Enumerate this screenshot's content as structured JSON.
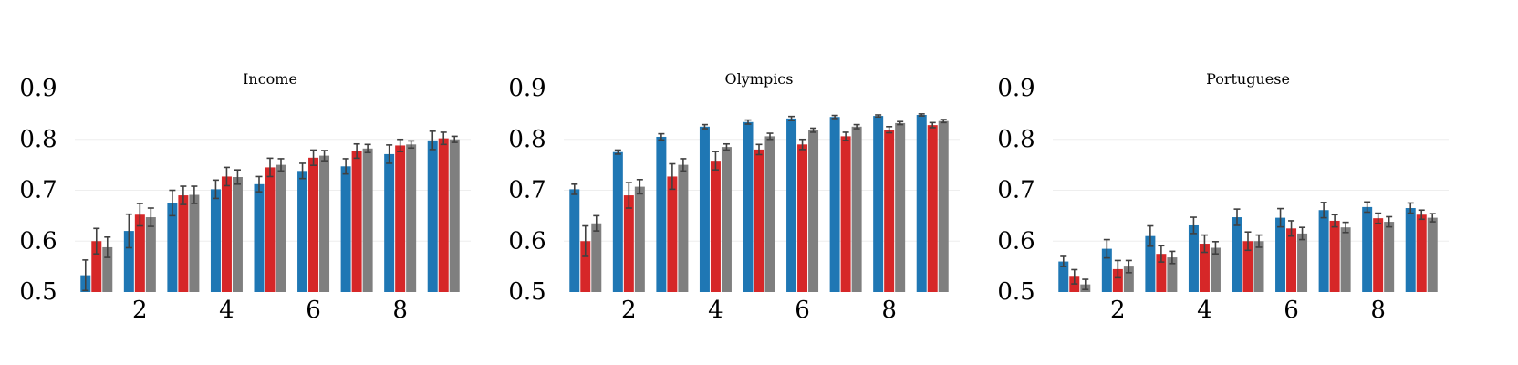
{
  "chart_data": [
    {
      "type": "bar",
      "title": "Income",
      "x": [
        1,
        2,
        3,
        4,
        5,
        6,
        7,
        8,
        9
      ],
      "x_ticks": [
        "2",
        "4",
        "6",
        "8"
      ],
      "y_ticks": [
        "0.5",
        "0.6",
        "0.7",
        "0.8",
        "0.9"
      ],
      "ylim": [
        0.5,
        0.9
      ],
      "grid": "horizontal",
      "series": [
        {
          "color": "#1f77b4",
          "values": [
            0.533,
            0.62,
            0.675,
            0.702,
            0.712,
            0.738,
            0.747,
            0.771,
            0.798
          ],
          "errors": [
            0.03,
            0.033,
            0.025,
            0.018,
            0.015,
            0.015,
            0.015,
            0.018,
            0.018
          ]
        },
        {
          "color": "#d62728",
          "values": [
            0.6,
            0.652,
            0.69,
            0.727,
            0.745,
            0.764,
            0.777,
            0.788,
            0.802
          ],
          "errors": [
            0.025,
            0.022,
            0.018,
            0.018,
            0.018,
            0.015,
            0.014,
            0.012,
            0.012
          ]
        },
        {
          "color": "#7f7f7f",
          "values": [
            0.588,
            0.647,
            0.691,
            0.726,
            0.75,
            0.768,
            0.782,
            0.79,
            0.8
          ],
          "errors": [
            0.02,
            0.018,
            0.017,
            0.014,
            0.012,
            0.01,
            0.008,
            0.007,
            0.006
          ]
        }
      ]
    },
    {
      "type": "bar",
      "title": "Olympics",
      "x": [
        1,
        2,
        3,
        4,
        5,
        6,
        7,
        8,
        9
      ],
      "x_ticks": [
        "2",
        "4",
        "6",
        "8"
      ],
      "y_ticks": [
        "0.5",
        "0.6",
        "0.7",
        "0.8",
        "0.9"
      ],
      "ylim": [
        0.5,
        0.9
      ],
      "grid": "horizontal",
      "series": [
        {
          "color": "#1f77b4",
          "values": [
            0.702,
            0.775,
            0.805,
            0.825,
            0.834,
            0.841,
            0.844,
            0.846,
            0.848
          ],
          "errors": [
            0.01,
            0.004,
            0.006,
            0.004,
            0.004,
            0.004,
            0.003,
            0.002,
            0.002
          ]
        },
        {
          "color": "#d62728",
          "values": [
            0.6,
            0.69,
            0.727,
            0.758,
            0.78,
            0.79,
            0.806,
            0.819,
            0.828
          ],
          "errors": [
            0.03,
            0.025,
            0.025,
            0.018,
            0.01,
            0.01,
            0.008,
            0.006,
            0.005
          ]
        },
        {
          "color": "#7f7f7f",
          "values": [
            0.635,
            0.707,
            0.75,
            0.785,
            0.806,
            0.818,
            0.825,
            0.832,
            0.836
          ],
          "errors": [
            0.015,
            0.014,
            0.012,
            0.006,
            0.006,
            0.004,
            0.004,
            0.003,
            0.003
          ]
        }
      ]
    },
    {
      "type": "bar",
      "title": "Portuguese",
      "x": [
        1,
        2,
        3,
        4,
        5,
        6,
        7,
        8,
        9
      ],
      "x_ticks": [
        "2",
        "4",
        "6",
        "8"
      ],
      "y_ticks": [
        "0.5",
        "0.6",
        "0.7",
        "0.8",
        "0.9"
      ],
      "ylim": [
        0.5,
        0.9
      ],
      "grid": "horizontal",
      "series": [
        {
          "color": "#1f77b4",
          "values": [
            0.56,
            0.585,
            0.61,
            0.631,
            0.647,
            0.646,
            0.661,
            0.667,
            0.665
          ],
          "errors": [
            0.01,
            0.018,
            0.02,
            0.016,
            0.016,
            0.018,
            0.015,
            0.01,
            0.01
          ]
        },
        {
          "color": "#d62728",
          "values": [
            0.53,
            0.545,
            0.575,
            0.595,
            0.6,
            0.625,
            0.64,
            0.645,
            0.652
          ],
          "errors": [
            0.014,
            0.017,
            0.016,
            0.017,
            0.018,
            0.015,
            0.012,
            0.01,
            0.009
          ]
        },
        {
          "color": "#7f7f7f",
          "values": [
            0.515,
            0.55,
            0.568,
            0.587,
            0.6,
            0.615,
            0.627,
            0.638,
            0.646
          ],
          "errors": [
            0.01,
            0.012,
            0.012,
            0.012,
            0.012,
            0.012,
            0.01,
            0.01,
            0.008
          ]
        }
      ]
    }
  ]
}
